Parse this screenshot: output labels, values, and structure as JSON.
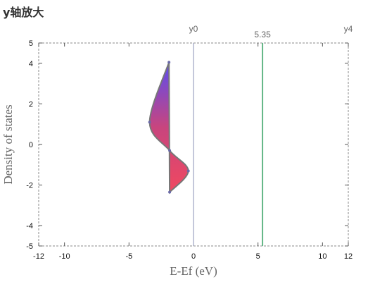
{
  "page": {
    "title": "y轴放大"
  },
  "chart_data": {
    "type": "area",
    "xlabel": "E-Ef (eV)",
    "ylabel": "Density of states",
    "xlim": [
      -12,
      12
    ],
    "ylim": [
      -5,
      5
    ],
    "x_ticks": [
      -12,
      -10,
      -5,
      0,
      5,
      10,
      12
    ],
    "y_ticks": [
      5,
      4,
      2,
      0,
      -2,
      -4,
      -5
    ],
    "grid": false,
    "curve": {
      "points": [
        {
          "x": -1.9,
          "y": 4.05
        },
        {
          "x": -3.4,
          "y": 1.1
        },
        {
          "x": -1.85,
          "y": -0.3
        },
        {
          "x": -0.4,
          "y": -1.3
        },
        {
          "x": -1.85,
          "y": -2.35
        }
      ],
      "fill_colors": [
        "#5b4cf0",
        "#c8457e",
        "#f04860"
      ],
      "stroke_color": "#777777"
    },
    "vertical_lines": [
      {
        "x": 0,
        "label": "y0",
        "color": "#8a8fb5"
      },
      {
        "x": 5.35,
        "label": "5.35",
        "color": "#62b585"
      },
      {
        "x": 12,
        "label": "y4",
        "color": "#888888"
      }
    ]
  }
}
